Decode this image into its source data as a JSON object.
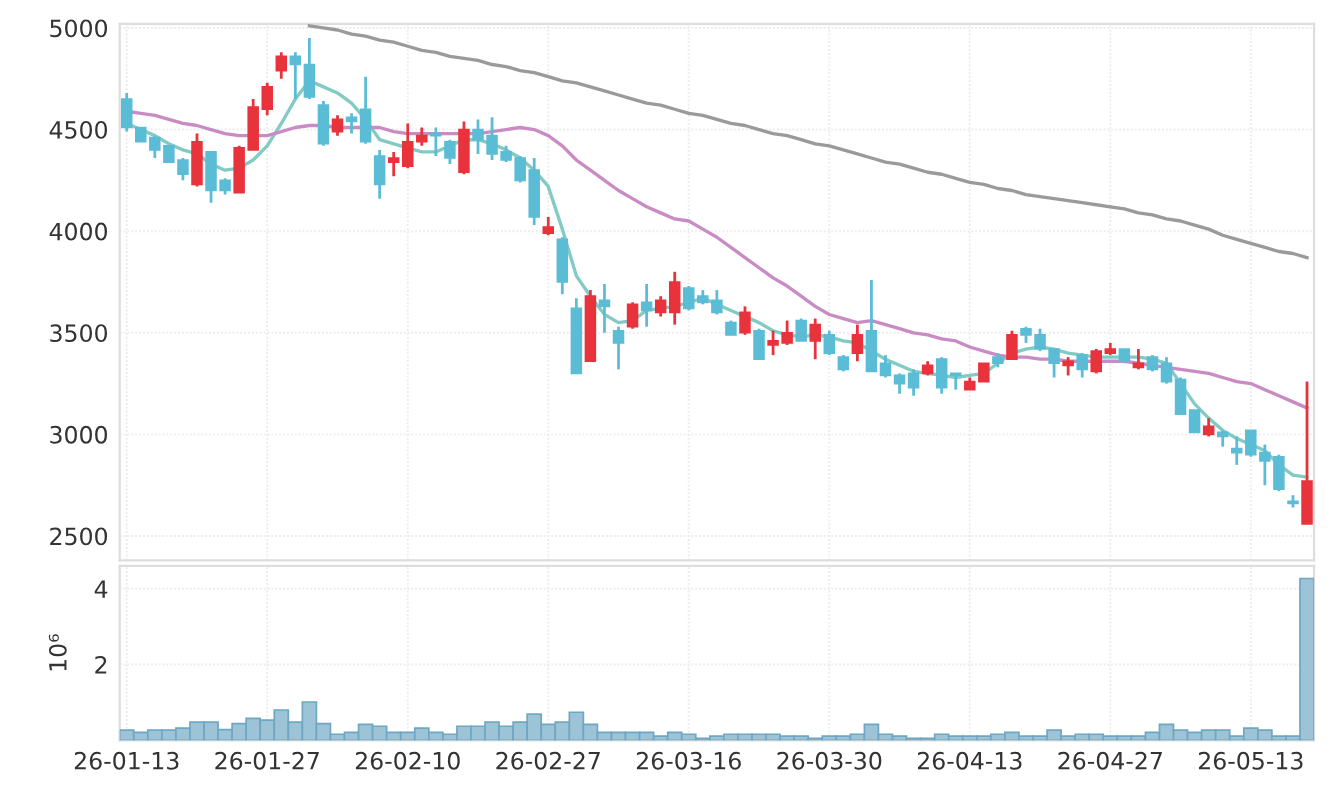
{
  "chart_data": [
    {
      "type": "candlestick",
      "categories": [
        null,
        null,
        null,
        null,
        null,
        null,
        null,
        null,
        null,
        null,
        null,
        null,
        null,
        null,
        null,
        null,
        null,
        null,
        null,
        null,
        null,
        null,
        null,
        null,
        null,
        null,
        null,
        null,
        null,
        null,
        null,
        null,
        null,
        null,
        null,
        null,
        null,
        null,
        null,
        null,
        null,
        null,
        null,
        null,
        null,
        null,
        null,
        null,
        null,
        null,
        null,
        null,
        null,
        null,
        null,
        null,
        null,
        null,
        null,
        null,
        null,
        null,
        null,
        null,
        null,
        null,
        null,
        null,
        null,
        null,
        null,
        null,
        null,
        null,
        null,
        null,
        null,
        null,
        null,
        null,
        null,
        null,
        null,
        null,
        null
      ],
      "ohlc": [
        [
          4650,
          4680,
          4490,
          4510
        ],
        [
          4510,
          4510,
          4440,
          4440
        ],
        [
          4460,
          4470,
          4360,
          4400
        ],
        [
          4420,
          4420,
          4340,
          4340
        ],
        [
          4350,
          4360,
          4250,
          4280
        ],
        [
          4230,
          4480,
          4220,
          4440
        ],
        [
          4390,
          4390,
          4140,
          4200
        ],
        [
          4250,
          4260,
          4180,
          4200
        ],
        [
          4190,
          4420,
          4190,
          4410
        ],
        [
          4400,
          4650,
          4400,
          4610
        ],
        [
          4600,
          4730,
          4570,
          4710
        ],
        [
          4790,
          4880,
          4750,
          4860
        ],
        [
          4860,
          4880,
          4650,
          4820
        ],
        [
          4820,
          4950,
          4650,
          4660
        ],
        [
          4620,
          4640,
          4420,
          4430
        ],
        [
          4490,
          4570,
          4470,
          4550
        ],
        [
          4560,
          4580,
          4480,
          4540
        ],
        [
          4600,
          4760,
          4430,
          4440
        ],
        [
          4370,
          4400,
          4160,
          4230
        ],
        [
          4340,
          4390,
          4270,
          4360
        ],
        [
          4320,
          4530,
          4310,
          4440
        ],
        [
          4440,
          4510,
          4420,
          4470
        ],
        [
          4480,
          4510,
          4370,
          4470
        ],
        [
          4440,
          4450,
          4330,
          4360
        ],
        [
          4290,
          4540,
          4280,
          4500
        ],
        [
          4500,
          4550,
          4380,
          4450
        ],
        [
          4470,
          4560,
          4350,
          4380
        ],
        [
          4390,
          4420,
          4340,
          4350
        ],
        [
          4360,
          4370,
          4240,
          4250
        ],
        [
          4300,
          4360,
          4030,
          4070
        ],
        [
          3990,
          4070,
          3980,
          4020
        ],
        [
          3960,
          3970,
          3690,
          3750
        ],
        [
          3620,
          3670,
          3300,
          3300
        ],
        [
          3360,
          3710,
          3360,
          3680
        ],
        [
          3660,
          3740,
          3500,
          3630
        ],
        [
          3510,
          3530,
          3320,
          3450
        ],
        [
          3530,
          3650,
          3520,
          3640
        ],
        [
          3650,
          3740,
          3530,
          3610
        ],
        [
          3600,
          3680,
          3580,
          3660
        ],
        [
          3600,
          3800,
          3540,
          3750
        ],
        [
          3720,
          3730,
          3610,
          3620
        ],
        [
          3680,
          3710,
          3640,
          3650
        ],
        [
          3660,
          3710,
          3590,
          3600
        ],
        [
          3550,
          3560,
          3490,
          3490
        ],
        [
          3500,
          3630,
          3490,
          3600
        ],
        [
          3510,
          3520,
          3370,
          3370
        ],
        [
          3440,
          3510,
          3390,
          3460
        ],
        [
          3450,
          3560,
          3440,
          3500
        ],
        [
          3560,
          3570,
          3460,
          3460
        ],
        [
          3460,
          3570,
          3370,
          3540
        ],
        [
          3490,
          3510,
          3390,
          3400
        ],
        [
          3380,
          3390,
          3310,
          3320
        ],
        [
          3400,
          3540,
          3360,
          3490
        ],
        [
          3510,
          3760,
          3310,
          3310
        ],
        [
          3350,
          3390,
          3280,
          3290
        ],
        [
          3290,
          3300,
          3200,
          3250
        ],
        [
          3300,
          3320,
          3190,
          3230
        ],
        [
          3300,
          3360,
          3290,
          3340
        ],
        [
          3370,
          3380,
          3200,
          3230
        ],
        [
          3300,
          3300,
          3220,
          3290
        ],
        [
          3220,
          3280,
          3220,
          3260
        ],
        [
          3260,
          3350,
          3260,
          3350
        ],
        [
          3380,
          3400,
          3330,
          3350
        ],
        [
          3370,
          3510,
          3370,
          3490
        ],
        [
          3520,
          3530,
          3450,
          3490
        ],
        [
          3490,
          3520,
          3410,
          3420
        ],
        [
          3420,
          3420,
          3280,
          3350
        ],
        [
          3340,
          3380,
          3290,
          3360
        ],
        [
          3390,
          3400,
          3280,
          3320
        ],
        [
          3310,
          3420,
          3300,
          3410
        ],
        [
          3400,
          3450,
          3390,
          3420
        ],
        [
          3420,
          3420,
          3350,
          3360
        ],
        [
          3330,
          3420,
          3320,
          3350
        ],
        [
          3380,
          3390,
          3310,
          3320
        ],
        [
          3350,
          3380,
          3250,
          3260
        ],
        [
          3270,
          3280,
          3100,
          3100
        ],
        [
          3120,
          3120,
          3010,
          3010
        ],
        [
          3000,
          3080,
          2990,
          3040
        ],
        [
          3010,
          3020,
          2940,
          2990
        ],
        [
          2930,
          2990,
          2850,
          2910
        ],
        [
          3020,
          3020,
          2890,
          2900
        ],
        [
          2910,
          2950,
          2750,
          2870
        ],
        [
          2890,
          2900,
          2720,
          2730
        ],
        [
          2670,
          2700,
          2640,
          2660
        ],
        [
          2560,
          3260,
          2560,
          2770
        ]
      ],
      "colors": [
        "#5bbcd6",
        "#5bbcd6",
        "#5bbcd6",
        "#5bbcd6",
        "#5bbcd6",
        "#e8323c",
        "#5bbcd6",
        "#5bbcd6",
        "#e8323c",
        "#e8323c",
        "#e8323c",
        "#e8323c",
        "#5bbcd6",
        "#5bbcd6",
        "#5bbcd6",
        "#e8323c",
        "#5bbcd6",
        "#5bbcd6",
        "#5bbcd6",
        "#e8323c",
        "#e8323c",
        "#e8323c",
        "#5bbcd6",
        "#5bbcd6",
        "#e8323c",
        "#5bbcd6",
        "#5bbcd6",
        "#5bbcd6",
        "#5bbcd6",
        "#5bbcd6",
        "#e8323c",
        "#5bbcd6",
        "#5bbcd6",
        "#e8323c",
        "#5bbcd6",
        "#5bbcd6",
        "#e8323c",
        "#5bbcd6",
        "#e8323c",
        "#e8323c",
        "#5bbcd6",
        "#5bbcd6",
        "#5bbcd6",
        "#5bbcd6",
        "#e8323c",
        "#5bbcd6",
        "#e8323c",
        "#e8323c",
        "#5bbcd6",
        "#e8323c",
        "#5bbcd6",
        "#5bbcd6",
        "#e8323c",
        "#5bbcd6",
        "#5bbcd6",
        "#5bbcd6",
        "#5bbcd6",
        "#e8323c",
        "#5bbcd6",
        "#5bbcd6",
        "#e8323c",
        "#e8323c",
        "#5bbcd6",
        "#e8323c",
        "#5bbcd6",
        "#5bbcd6",
        "#5bbcd6",
        "#e8323c",
        "#5bbcd6",
        "#e8323c",
        "#e8323c",
        "#5bbcd6",
        "#e8323c",
        "#5bbcd6",
        "#5bbcd6",
        "#5bbcd6",
        "#5bbcd6",
        "#e8323c",
        "#5bbcd6",
        "#5bbcd6",
        "#5bbcd6",
        "#5bbcd6",
        "#5bbcd6",
        "#5bbcd6",
        "#e8323c"
      ],
      "series": [
        {
          "type": "line",
          "color": "#82cbc4",
          "values": [
            4530,
            4500,
            4470,
            4430,
            4400,
            4380,
            4330,
            4300,
            4310,
            4350,
            4420,
            4530,
            4650,
            4740,
            4710,
            4680,
            4630,
            4550,
            4450,
            4430,
            4410,
            4390,
            4390,
            4420,
            4450,
            4450,
            4430,
            4400,
            4360,
            4300,
            4220,
            4010,
            3780,
            3680,
            3590,
            3550,
            3560,
            3610,
            3620,
            3630,
            3650,
            3670,
            3640,
            3610,
            3580,
            3550,
            3510,
            3490,
            3480,
            3490,
            3480,
            3460,
            3450,
            3410,
            3370,
            3340,
            3310,
            3300,
            3290,
            3280,
            3290,
            3300,
            3350,
            3400,
            3420,
            3430,
            3420,
            3400,
            3390,
            3380,
            3380,
            3380,
            3380,
            3370,
            3350,
            3250,
            3150,
            3080,
            3020,
            2980,
            2950,
            2920,
            2850,
            2800,
            2790
          ]
        },
        {
          "type": "line",
          "color": "#c98bc4",
          "values": [
            4590,
            4580,
            4570,
            4550,
            4530,
            4520,
            4500,
            4480,
            4470,
            4470,
            4470,
            4490,
            4510,
            4520,
            4520,
            4510,
            4510,
            4510,
            4510,
            4490,
            4480,
            4480,
            4480,
            4480,
            4480,
            4480,
            4490,
            4500,
            4510,
            4500,
            4470,
            4420,
            4350,
            4300,
            4250,
            4200,
            4160,
            4120,
            4090,
            4060,
            4050,
            4010,
            3970,
            3920,
            3870,
            3820,
            3770,
            3730,
            3680,
            3630,
            3590,
            3570,
            3550,
            3560,
            3540,
            3520,
            3500,
            3490,
            3470,
            3460,
            3430,
            3410,
            3390,
            3380,
            3380,
            3370,
            3370,
            3360,
            3360,
            3360,
            3360,
            3360,
            3350,
            3340,
            3330,
            3320,
            3310,
            3300,
            3280,
            3260,
            3250,
            3220,
            3190,
            3160,
            3130
          ]
        },
        {
          "type": "line",
          "color": "#9a9a9a",
          "values": [
            null,
            null,
            null,
            null,
            null,
            null,
            null,
            null,
            null,
            null,
            null,
            null,
            null,
            5010,
            5000,
            4990,
            4970,
            4960,
            4940,
            4930,
            4910,
            4890,
            4880,
            4860,
            4850,
            4840,
            4820,
            4810,
            4790,
            4780,
            4760,
            4740,
            4730,
            4710,
            4690,
            4670,
            4650,
            4630,
            4620,
            4600,
            4580,
            4570,
            4550,
            4530,
            4520,
            4500,
            4480,
            4470,
            4450,
            4430,
            4420,
            4400,
            4380,
            4360,
            4340,
            4330,
            4310,
            4290,
            4280,
            4260,
            4240,
            4230,
            4210,
            4200,
            4180,
            4170,
            4160,
            4150,
            4140,
            4130,
            4120,
            4110,
            4090,
            4080,
            4060,
            4050,
            4030,
            4010,
            3980,
            3960,
            3940,
            3920,
            3900,
            3890,
            3870
          ]
        }
      ],
      "ylim": [
        2380,
        5020
      ],
      "yticks": [
        2500,
        3000,
        3500,
        4000,
        4500,
        5000
      ],
      "grid": true
    },
    {
      "type": "bar",
      "ylabel": "10⁶",
      "categories": [
        "26-01-13",
        null,
        null,
        null,
        null,
        null,
        null,
        null,
        null,
        null,
        "26-01-27",
        null,
        null,
        null,
        null,
        null,
        null,
        null,
        null,
        null,
        "26-02-10",
        null,
        null,
        null,
        null,
        null,
        null,
        null,
        null,
        null,
        "26-02-27",
        null,
        null,
        null,
        null,
        null,
        null,
        null,
        null,
        null,
        "26-03-16",
        null,
        null,
        null,
        null,
        null,
        null,
        null,
        null,
        null,
        "26-03-30",
        null,
        null,
        null,
        null,
        null,
        null,
        null,
        null,
        null,
        "26-04-13",
        null,
        null,
        null,
        null,
        null,
        null,
        null,
        null,
        null,
        "26-04-27",
        null,
        null,
        null,
        null,
        null,
        null,
        null,
        null,
        null,
        "26-05-13",
        null,
        null,
        null,
        null
      ],
      "values": [
        0.27,
        0.21,
        0.27,
        0.27,
        0.32,
        0.48,
        0.48,
        0.28,
        0.44,
        0.58,
        0.53,
        0.8,
        0.48,
        1.01,
        0.44,
        0.16,
        0.21,
        0.42,
        0.37,
        0.21,
        0.21,
        0.32,
        0.21,
        0.16,
        0.37,
        0.37,
        0.48,
        0.37,
        0.48,
        0.69,
        0.42,
        0.48,
        0.74,
        0.42,
        0.21,
        0.21,
        0.21,
        0.21,
        0.11,
        0.21,
        0.16,
        0.05,
        0.11,
        0.16,
        0.16,
        0.16,
        0.16,
        0.11,
        0.11,
        0.05,
        0.11,
        0.11,
        0.16,
        0.42,
        0.16,
        0.11,
        0.05,
        0.05,
        0.16,
        0.11,
        0.11,
        0.11,
        0.16,
        0.21,
        0.11,
        0.11,
        0.27,
        0.11,
        0.16,
        0.16,
        0.11,
        0.11,
        0.11,
        0.21,
        0.42,
        0.27,
        0.21,
        0.27,
        0.27,
        0.11,
        0.32,
        0.27,
        0.11,
        0.11,
        4.27
      ],
      "color": "#9cc3d6",
      "ylim": [
        0,
        4.6
      ],
      "yticks": [
        2,
        4
      ],
      "grid": true
    }
  ]
}
